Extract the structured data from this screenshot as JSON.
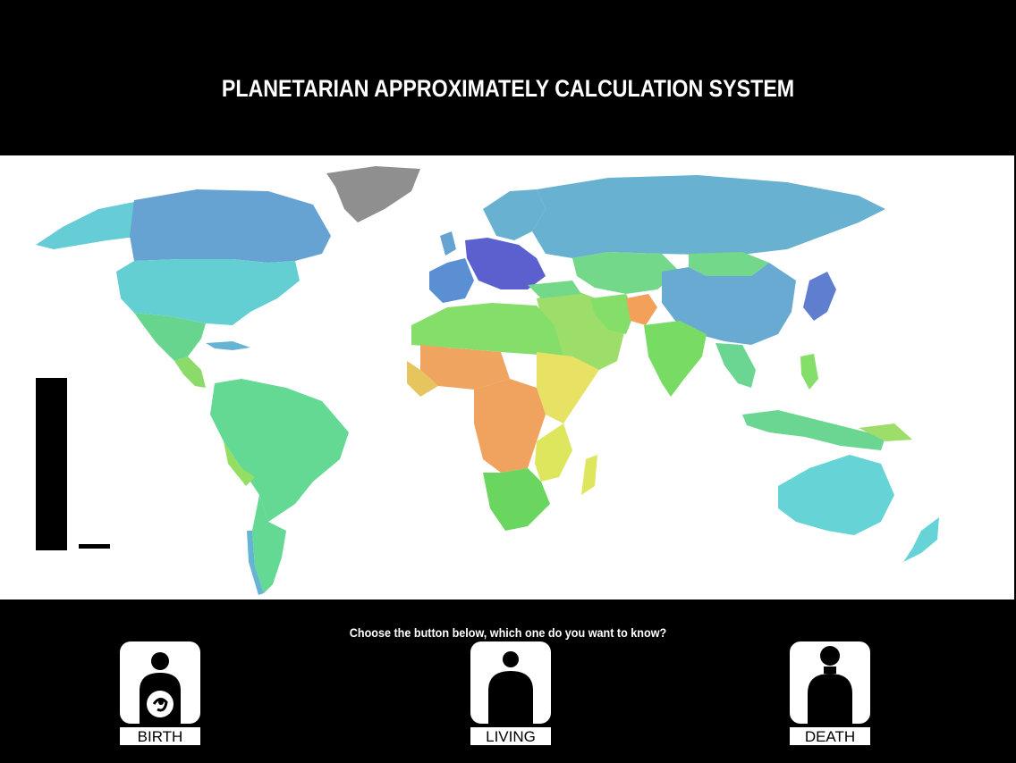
{
  "header": {
    "title": "PLANETARIAN APPROXIMATELY CALCULATION SYSTEM"
  },
  "map": {
    "region_colors": {
      "north_america_north": "#66A3D2",
      "united_states": "#63CFD3",
      "greenland": "#8F8F8F",
      "mexico_central_america": "#67D58E",
      "south_america": "#63D993",
      "europe_west": "#5A8FD4",
      "europe_central": "#5C60CE",
      "russia": "#68B1D0",
      "central_asia": "#74D88A",
      "china": "#68AAD1",
      "japan": "#5F7ED0",
      "north_africa": "#86DE6A",
      "sahel": "#EFA560",
      "central_africa": "#F0A35E",
      "east_africa": "#E7E264",
      "southern_africa": "#6AD65F",
      "middle_east": "#9DDE6B",
      "afghanistan": "#F3A05A",
      "india": "#78DB63",
      "southeast_asia": "#6AD691",
      "australia": "#66D4D6",
      "madagascar": "#DDE65C"
    },
    "legend": {
      "bar_color": "#000000"
    }
  },
  "prompt": "Choose the button below, which one do you want to know?",
  "choices": [
    {
      "id": "birth",
      "label": "BIRTH",
      "icon": "pregnant-person-icon"
    },
    {
      "id": "living",
      "label": "LIVING",
      "icon": "person-icon"
    },
    {
      "id": "death",
      "label": "DEATH",
      "icon": "person-icon"
    }
  ]
}
